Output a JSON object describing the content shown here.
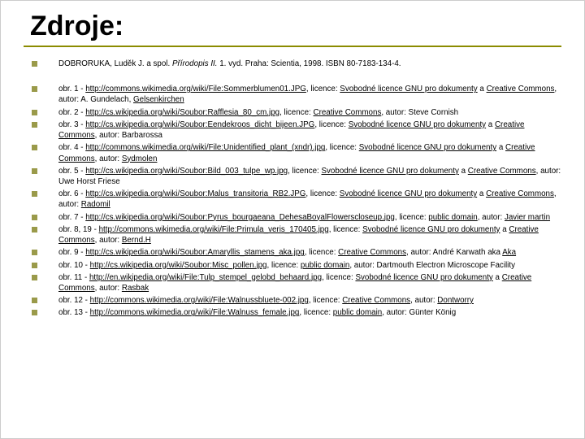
{
  "title": "Zdroje:",
  "colors": {
    "rule": "#8b8b00",
    "bullet": "#9a9a4a",
    "text": "#000000",
    "background": "#ffffff"
  },
  "citation": {
    "authors": "DOBRORUKA, Luděk J. a spol.",
    "title_italic": "Přírodopis II.",
    "rest": " 1. vyd. Praha: Scientia, 1998. ISBN 80-7183-134-4."
  },
  "items": [
    {
      "prefix": "obr. 1 - ",
      "url": "http://commons.wikimedia.org/wiki/File:Sommerblumen01.JPG",
      "lic_pre": ", licence: ",
      "lic": "Svobodné licence GNU pro dokumenty",
      "lic_and": " a ",
      "lic2": "Creative Commons",
      "author_pre": ", autor: A. Gundelach, ",
      "author_link": "Gelsenkirchen",
      "tail": ""
    },
    {
      "prefix": "obr. 2 - ",
      "url": "http://cs.wikipedia.org/wiki/Soubor:Rafflesia_80_cm.jpg",
      "lic_pre": ", licence: ",
      "lic": "Creative Commons",
      "lic_and": "",
      "lic2": "",
      "author_pre": ", autor: Steve Cornish",
      "author_link": "",
      "tail": ""
    },
    {
      "prefix": "obr. 3 - ",
      "url": "http://cs.wikipedia.org/wiki/Soubor:Eendekroos_dicht_bijeen.JPG",
      "lic_pre": ", licence: ",
      "lic": "Svobodné licence GNU pro dokumenty",
      "lic_and": " a ",
      "lic2": "Creative Commons",
      "author_pre": ", autor: Barbarossa",
      "author_link": "",
      "tail": ""
    },
    {
      "prefix": "obr. 4 - ",
      "url": "http://commons.wikimedia.org/wiki/File:Unidentified_plant_(xndr).jpg",
      "lic_pre": ", licence: ",
      "lic": "Svobodné licence GNU pro dokumenty",
      "lic_and": " a ",
      "lic2": "Creative Commons",
      "author_pre": ", autor: ",
      "author_link": "Sydmolen",
      "tail": ""
    },
    {
      "prefix": "obr. 5 - ",
      "url": "http://cs.wikipedia.org/wiki/Soubor:Bild_003_tulpe_wp.jpg",
      "lic_pre": ", licence: ",
      "lic": "Svobodné licence GNU pro dokumenty",
      "lic_and": " a ",
      "lic2": "Creative Commons",
      "author_pre": ", autor: Uwe Horst Friese",
      "author_link": "",
      "tail": ""
    },
    {
      "prefix": "obr. 6 - ",
      "url": "http://cs.wikipedia.org/wiki/Soubor:Malus_transitoria_RB2.JPG",
      "lic_pre": ", licence: ",
      "lic": "Svobodné licence GNU pro dokumenty",
      "lic_and": " a ",
      "lic2": "Creative Commons",
      "author_pre": ", autor: ",
      "author_link": "Radomil",
      "tail": ""
    },
    {
      "prefix": "obr. 7 - ",
      "url": "http://cs.wikipedia.org/wiki/Soubor:Pyrus_bourgaeana_DehesaBoyalFlowerscloseup.jpg",
      "lic_pre": ", licence: ",
      "lic": "public domain",
      "lic_and": "",
      "lic2": "",
      "author_pre": ", autor: ",
      "author_link": "Javier martin",
      "tail": ""
    },
    {
      "prefix": "obr. 8, 19 - ",
      "url": "http://commons.wikimedia.org/wiki/File:Primula_veris_170405.jpg",
      "lic_pre": ", licence: ",
      "lic": "Svobodné licence GNU pro dokumenty",
      "lic_and": " a ",
      "lic2": "Creative Commons",
      "author_pre": ", autor: ",
      "author_link": "Bernd.H",
      "tail": ""
    },
    {
      "prefix": "obr. 9 - ",
      "url": "http://cs.wikipedia.org/wiki/Soubor:Amaryllis_stamens_aka.jpg",
      "lic_pre": ", licence: ",
      "lic": "Creative Commons",
      "lic_and": "",
      "lic2": "",
      "author_pre": ", autor: André Karwath aka ",
      "author_link": "Aka",
      "tail": ""
    },
    {
      "prefix": "obr. 10 - ",
      "url": "http://cs.wikipedia.org/wiki/Soubor:Misc_pollen.jpg",
      "lic_pre": ", licence: ",
      "lic": "public domain",
      "lic_and": "",
      "lic2": "",
      "author_pre": ", autor: Dartmouth Electron Microscope Facility",
      "author_link": "",
      "tail": ""
    },
    {
      "prefix": "obr. 11 - ",
      "url": "http://en.wikipedia.org/wiki/File:Tulp_stempel_gelobd_behaard.jpg",
      "lic_pre": ", licence: ",
      "lic": "Svobodné licence GNU pro dokumenty",
      "lic_and": " a ",
      "lic2": "Creative Commons",
      "author_pre": ", autor: ",
      "author_link": "Rasbak",
      "tail": ""
    },
    {
      "prefix": "obr. 12 - ",
      "url": "http://commons.wikimedia.org/wiki/File:Walnussbluete-002.jpg",
      "lic_pre": ", licence: ",
      "lic": "Creative Commons",
      "lic_and": "",
      "lic2": "",
      "author_pre": ", autor: ",
      "author_link": "Dontworry",
      "tail": ""
    },
    {
      "prefix": "obr. 13 - ",
      "url": "http://commons.wikimedia.org/wiki/File:Walnuss_female.jpg",
      "lic_pre": ", licence: ",
      "lic": "public domain",
      "lic_and": "",
      "lic2": "",
      "author_pre": ", autor: Günter König",
      "author_link": "",
      "tail": ""
    }
  ]
}
